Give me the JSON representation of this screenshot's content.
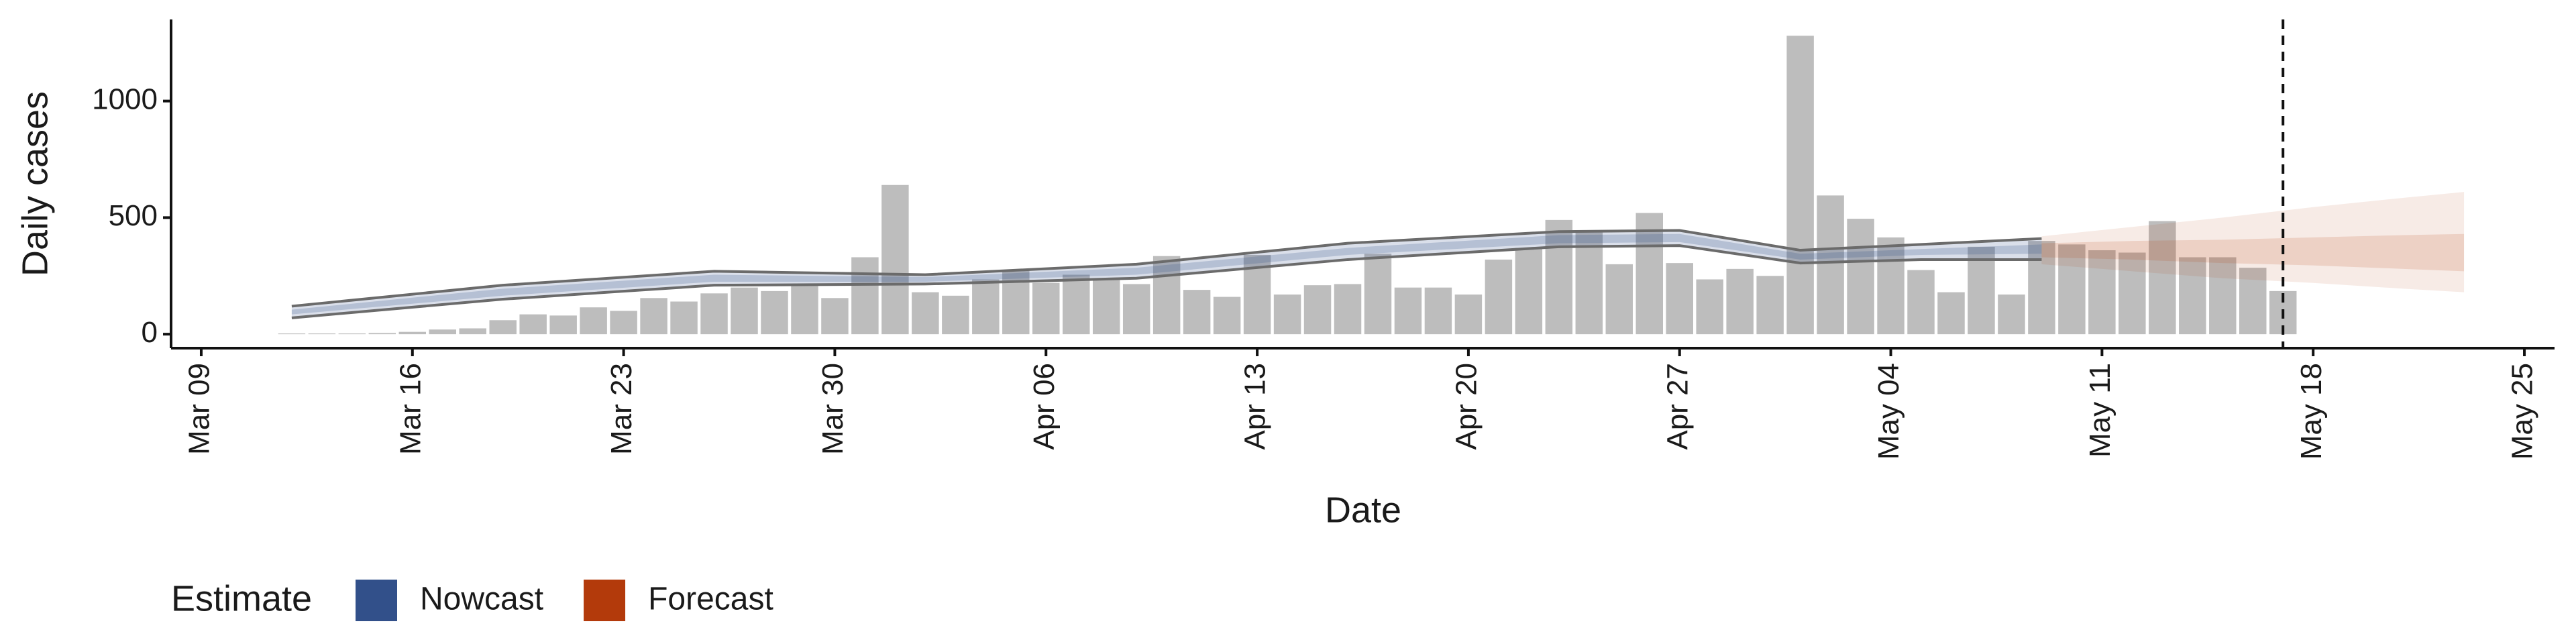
{
  "chart_data": {
    "type": "bar",
    "xlabel": "Date",
    "ylabel": "Daily cases",
    "x": [
      "Mar 12",
      "Mar 13",
      "Mar 14",
      "Mar 15",
      "Mar 16",
      "Mar 17",
      "Mar 18",
      "Mar 19",
      "Mar 20",
      "Mar 21",
      "Mar 22",
      "Mar 23",
      "Mar 24",
      "Mar 25",
      "Mar 26",
      "Mar 27",
      "Mar 28",
      "Mar 29",
      "Mar 30",
      "Mar 31",
      "Apr 01",
      "Apr 02",
      "Apr 03",
      "Apr 04",
      "Apr 05",
      "Apr 06",
      "Apr 07",
      "Apr 08",
      "Apr 09",
      "Apr 10",
      "Apr 11",
      "Apr 12",
      "Apr 13",
      "Apr 14",
      "Apr 15",
      "Apr 16",
      "Apr 17",
      "Apr 18",
      "Apr 19",
      "Apr 20",
      "Apr 21",
      "Apr 22",
      "Apr 23",
      "Apr 24",
      "Apr 25",
      "Apr 26",
      "Apr 27",
      "Apr 28",
      "Apr 29",
      "Apr 30",
      "May 01",
      "May 02",
      "May 03",
      "May 04",
      "May 05",
      "May 06",
      "May 07",
      "May 08",
      "May 09",
      "May 10",
      "May 11",
      "May 12",
      "May 13",
      "May 14",
      "May 15",
      "May 16",
      "May 17"
    ],
    "values": [
      3,
      3,
      3,
      5,
      10,
      20,
      25,
      60,
      85,
      80,
      115,
      100,
      155,
      140,
      175,
      200,
      185,
      210,
      155,
      330,
      640,
      180,
      165,
      235,
      275,
      220,
      255,
      240,
      215,
      335,
      190,
      160,
      340,
      170,
      210,
      215,
      345,
      200,
      200,
      170,
      320,
      370,
      490,
      445,
      300,
      520,
      305,
      235,
      280,
      250,
      1280,
      595,
      495,
      415,
      275,
      180,
      375,
      170,
      400,
      385,
      360,
      350,
      485,
      330,
      330,
      285,
      185
    ],
    "color": "#bdbdbd",
    "xlim": [
      "Mar 08",
      "May 26"
    ],
    "xticks": [
      "Mar 09",
      "Mar 16",
      "Mar 23",
      "Mar 30",
      "Apr 06",
      "Apr 13",
      "Apr 20",
      "Apr 27",
      "May 04",
      "May 11",
      "May 18",
      "May 25"
    ],
    "ylim": [
      -60,
      1350
    ],
    "yticks": [
      0,
      500,
      1000
    ],
    "vline": "May 17",
    "legend_title": "Estimate",
    "legend_position": "bottom-left",
    "bands": [
      {
        "name": "Nowcast",
        "color": "#32508a",
        "x": [
          "Mar 12",
          "Mar 19",
          "Mar 26",
          "Apr 02",
          "Apr 09",
          "Apr 16",
          "Apr 23",
          "Apr 27",
          "May 01",
          "May 05",
          "May 09"
        ],
        "lower90": [
          70,
          150,
          210,
          215,
          240,
          320,
          375,
          380,
          305,
          320,
          320
        ],
        "upper90": [
          120,
          210,
          270,
          255,
          300,
          390,
          440,
          445,
          360,
          385,
          410
        ],
        "lower50": [
          85,
          165,
          225,
          225,
          255,
          340,
          390,
          395,
          320,
          340,
          345
        ],
        "upper50": [
          105,
          195,
          255,
          245,
          285,
          370,
          425,
          430,
          345,
          365,
          385
        ]
      },
      {
        "name": "Forecast",
        "color": "#b33a0b",
        "x": [
          "May 09",
          "May 12",
          "May 15",
          "May 18",
          "May 21",
          "May 23"
        ],
        "lower90": [
          300,
          270,
          240,
          220,
          195,
          180
        ],
        "upper90": [
          420,
          460,
          500,
          545,
          585,
          610
        ],
        "lower50": [
          330,
          320,
          305,
          295,
          280,
          270
        ],
        "upper50": [
          390,
          400,
          405,
          415,
          425,
          430
        ]
      }
    ]
  }
}
